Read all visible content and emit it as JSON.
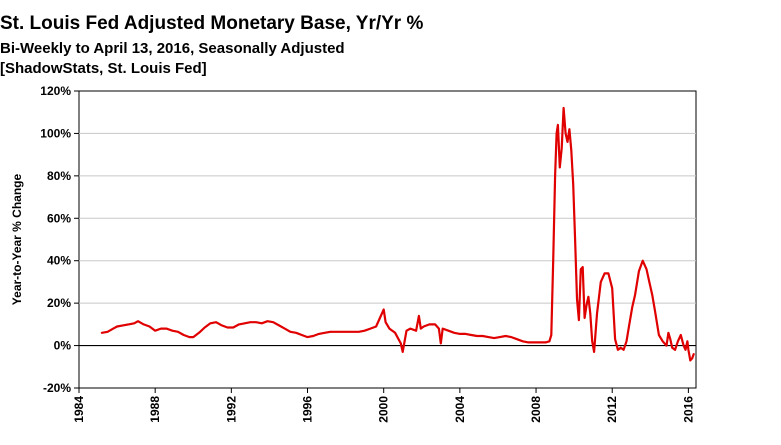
{
  "chart_data": {
    "type": "line",
    "title": "St. Louis Fed Adjusted Monetary Base, Yr/Yr %",
    "subtitle": "Bi-Weekly to April 13, 2016, Seasonally Adjusted",
    "source": "[ShadowStats, St. Louis Fed]",
    "xlabel": "",
    "ylabel": "Year-to-Year % Change",
    "xlim": [
      1984,
      2016.4
    ],
    "ylim": [
      -20,
      120
    ],
    "x_ticks": [
      1984,
      1988,
      1992,
      1996,
      2000,
      2004,
      2008,
      2012,
      2016
    ],
    "y_ticks": [
      -20,
      0,
      20,
      40,
      60,
      80,
      100,
      120
    ],
    "y_tick_labels": [
      "-20%",
      "0%",
      "20%",
      "40%",
      "60%",
      "80%",
      "100%",
      "120%"
    ],
    "grid": "horizontal",
    "zero_line": true,
    "line_color": "#e00000",
    "series": [
      {
        "name": "Adjusted Monetary Base, Yr/Yr %",
        "x": [
          1985.2,
          1985.5,
          1985.8,
          1986.0,
          1986.3,
          1986.6,
          1986.9,
          1987.1,
          1987.4,
          1987.7,
          1988.0,
          1988.3,
          1988.6,
          1988.9,
          1989.2,
          1989.5,
          1989.8,
          1990.0,
          1990.3,
          1990.6,
          1990.9,
          1991.2,
          1991.5,
          1991.8,
          1992.1,
          1992.4,
          1992.7,
          1993.0,
          1993.3,
          1993.6,
          1993.9,
          1994.2,
          1994.5,
          1994.8,
          1995.1,
          1995.4,
          1995.7,
          1996.0,
          1996.3,
          1996.6,
          1996.9,
          1997.2,
          1997.5,
          1997.8,
          1998.1,
          1998.4,
          1998.7,
          1999.0,
          1999.3,
          1999.6,
          1999.8,
          2000.0,
          2000.1,
          2000.3,
          2000.6,
          2000.9,
          2001.0,
          2001.2,
          2001.4,
          2001.7,
          2001.85,
          2001.95,
          2002.1,
          2002.4,
          2002.7,
          2002.9,
          2003.0,
          2003.1,
          2003.4,
          2003.7,
          2004.0,
          2004.3,
          2004.6,
          2004.9,
          2005.2,
          2005.5,
          2005.8,
          2006.1,
          2006.4,
          2006.7,
          2007.0,
          2007.3,
          2007.6,
          2007.9,
          2008.2,
          2008.5,
          2008.7,
          2008.8,
          2008.9,
          2009.0,
          2009.08,
          2009.15,
          2009.25,
          2009.35,
          2009.45,
          2009.55,
          2009.65,
          2009.75,
          2009.85,
          2009.95,
          2010.05,
          2010.15,
          2010.25,
          2010.35,
          2010.45,
          2010.55,
          2010.65,
          2010.75,
          2010.85,
          2010.95,
          2011.05,
          2011.2,
          2011.4,
          2011.6,
          2011.8,
          2012.0,
          2012.15,
          2012.3,
          2012.45,
          2012.6,
          2012.75,
          2012.9,
          2013.05,
          2013.2,
          2013.4,
          2013.6,
          2013.8,
          2013.95,
          2014.1,
          2014.25,
          2014.45,
          2014.65,
          2014.85,
          2014.95,
          2015.05,
          2015.15,
          2015.3,
          2015.45,
          2015.6,
          2015.75,
          2015.85,
          2015.95,
          2016.0,
          2016.1,
          2016.2,
          2016.28
        ],
        "values": [
          6,
          6.5,
          8,
          9,
          9.5,
          10,
          10.5,
          11.5,
          10,
          9,
          7,
          8,
          8,
          7,
          6.5,
          5,
          4,
          4,
          6,
          8.5,
          10.5,
          11,
          9.5,
          8.5,
          8.5,
          10,
          10.5,
          11,
          11,
          10.5,
          11.5,
          11,
          9.5,
          8,
          6.5,
          6,
          5,
          4,
          4.5,
          5.5,
          6,
          6.5,
          6.5,
          6.5,
          6.5,
          6.5,
          6.5,
          7,
          8,
          9,
          13,
          17,
          11,
          8,
          6,
          1,
          -3,
          7,
          8,
          7,
          14,
          8,
          9,
          10,
          10,
          8,
          1,
          8,
          7,
          6,
          5.5,
          5.5,
          5,
          4.5,
          4.5,
          4,
          3.5,
          4,
          4.5,
          4,
          3,
          2,
          1.5,
          1.5,
          1.5,
          1.5,
          2,
          5,
          40,
          80,
          100,
          104,
          84,
          93,
          112,
          100,
          96,
          102,
          92,
          76,
          50,
          22,
          12,
          36,
          37,
          13,
          19,
          23,
          15,
          2,
          -3,
          15,
          30,
          34,
          34,
          27,
          3,
          -2,
          -1,
          -2,
          2,
          10,
          18,
          24,
          35,
          40,
          36,
          30,
          24,
          16,
          5,
          2,
          0,
          6,
          3,
          -1,
          -2,
          2,
          5,
          0,
          -2,
          2,
          -2,
          -7,
          -6,
          -4
        ]
      }
    ]
  }
}
